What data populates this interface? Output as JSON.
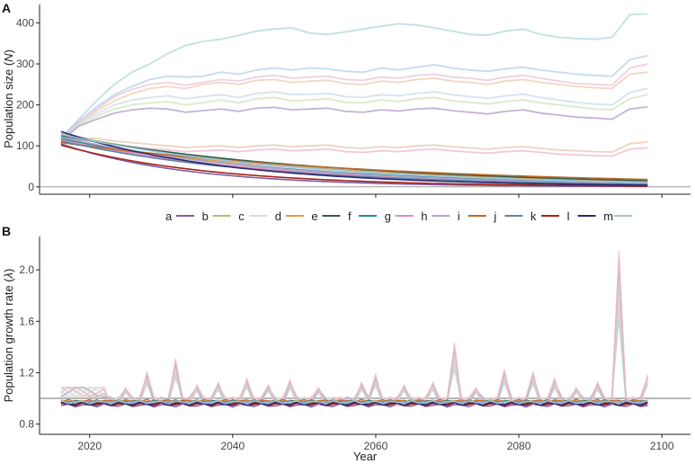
{
  "chart_data": [
    {
      "panel": "A",
      "type": "line",
      "ylabel_main": "Population size (",
      "ylabel_symbol": "N",
      "ylabel_close": ")",
      "xlabel": "",
      "xlim": [
        2013,
        2104
      ],
      "ylim": [
        -18,
        445
      ],
      "x_ticks": [
        2020,
        2040,
        2060,
        2080,
        2100
      ],
      "y_ticks": [
        0,
        100,
        200,
        300,
        400
      ],
      "y_tick_labels": [
        "0",
        "100",
        "200",
        "300",
        "400"
      ],
      "reference_line": 0,
      "start_year": 2016,
      "end_year": 2098,
      "series": [
        {
          "name": "a",
          "color": "#7b5ea7",
          "start": 105,
          "end": 1
        },
        {
          "name": "b",
          "color": "#a6c36f",
          "start": 130,
          "end": 12
        },
        {
          "name": "c",
          "color": "#d9dbe8",
          "start": 120,
          "end": 10
        },
        {
          "name": "d",
          "color": "#e0a044",
          "start": 110,
          "end": 14
        },
        {
          "name": "e",
          "color": "#2c5f4e",
          "start": 125,
          "end": 15
        },
        {
          "name": "f",
          "color": "#1f8f9e",
          "start": 118,
          "end": 9
        },
        {
          "name": "g",
          "color": "#e68ab8",
          "start": 115,
          "end": 7
        },
        {
          "name": "h",
          "color": "#b7a3cc",
          "start": 122,
          "end": 8
        },
        {
          "name": "i",
          "color": "#b86a2e",
          "start": 108,
          "end": 18
        },
        {
          "name": "j",
          "color": "#5b85a8",
          "start": 112,
          "end": 6
        },
        {
          "name": "k",
          "color": "#a62219",
          "start": 102,
          "end": 2
        },
        {
          "name": "l",
          "color": "#2b2a6e",
          "start": 135,
          "end": 4
        },
        {
          "name": "m",
          "color": "#9cc6e0",
          "start": 128,
          "end": 11
        }
      ],
      "faint_trajectories": [
        {
          "color": "#a9d8d6",
          "values": [
            120,
            165,
            210,
            250,
            280,
            300,
            325,
            345,
            355,
            360,
            370,
            380,
            385,
            388,
            375,
            372,
            378,
            385,
            392,
            398,
            395,
            388,
            380,
            372,
            370,
            380,
            385,
            372,
            365,
            362,
            360,
            365,
            420,
            422
          ]
        },
        {
          "color": "#b3cdea",
          "values": [
            118,
            160,
            195,
            225,
            245,
            262,
            270,
            268,
            270,
            280,
            275,
            285,
            290,
            285,
            290,
            288,
            282,
            280,
            290,
            285,
            292,
            298,
            290,
            285,
            282,
            288,
            292,
            285,
            280,
            275,
            272,
            270,
            310,
            320
          ]
        },
        {
          "color": "#f0c8a8",
          "values": [
            115,
            155,
            185,
            210,
            228,
            240,
            245,
            240,
            250,
            255,
            250,
            260,
            262,
            255,
            258,
            260,
            252,
            250,
            258,
            255,
            262,
            265,
            258,
            255,
            250,
            258,
            262,
            255,
            250,
            245,
            242,
            240,
            275,
            280
          ]
        },
        {
          "color": "#e8c0d8",
          "values": [
            117,
            160,
            190,
            220,
            238,
            250,
            255,
            248,
            255,
            262,
            258,
            268,
            272,
            265,
            268,
            270,
            262,
            260,
            268,
            265,
            272,
            275,
            268,
            265,
            260,
            268,
            272,
            265,
            258,
            252,
            250,
            248,
            290,
            300
          ]
        },
        {
          "color": "#cfe3b5",
          "values": [
            114,
            150,
            172,
            190,
            200,
            205,
            208,
            200,
            205,
            212,
            205,
            215,
            218,
            210,
            212,
            215,
            206,
            205,
            212,
            208,
            215,
            218,
            210,
            206,
            202,
            208,
            212,
            205,
            200,
            195,
            190,
            188,
            215,
            225
          ]
        },
        {
          "color": "#c7d9ec",
          "values": [
            116,
            155,
            178,
            200,
            212,
            218,
            222,
            215,
            220,
            225,
            218,
            228,
            232,
            225,
            226,
            228,
            220,
            218,
            225,
            222,
            228,
            232,
            225,
            220,
            216,
            222,
            226,
            218,
            212,
            206,
            202,
            200,
            230,
            240
          ]
        },
        {
          "color": "#b09ac8",
          "values": [
            112,
            148,
            165,
            180,
            188,
            192,
            190,
            182,
            186,
            190,
            184,
            192,
            194,
            188,
            190,
            192,
            184,
            182,
            188,
            185,
            190,
            192,
            186,
            182,
            178,
            184,
            188,
            180,
            175,
            170,
            168,
            165,
            190,
            195
          ]
        },
        {
          "color": "#e6c6ae",
          "values": [
            110,
            120,
            118,
            112,
            108,
            104,
            100,
            96,
            98,
            100,
            96,
            100,
            102,
            98,
            100,
            102,
            96,
            94,
            98,
            96,
            100,
            102,
            98,
            95,
            92,
            96,
            98,
            94,
            90,
            88,
            86,
            85,
            105,
            110
          ]
        },
        {
          "color": "#edb6cc",
          "values": [
            108,
            115,
            112,
            104,
            98,
            94,
            90,
            86,
            88,
            90,
            86,
            90,
            92,
            88,
            90,
            92,
            86,
            84,
            88,
            86,
            90,
            92,
            88,
            85,
            82,
            86,
            88,
            84,
            80,
            78,
            76,
            75,
            92,
            95
          ]
        }
      ]
    },
    {
      "panel": "B",
      "type": "line",
      "ylabel_main": "Population growth rate (",
      "ylabel_symbol": "λ",
      "ylabel_close": ")",
      "xlabel": "Year",
      "xlim": [
        2013,
        2104
      ],
      "ylim": [
        0.72,
        2.26
      ],
      "x_ticks": [
        2020,
        2040,
        2060,
        2080,
        2100
      ],
      "x_tick_labels": [
        "2020",
        "2040",
        "2060",
        "2080",
        "2100"
      ],
      "y_ticks": [
        0.8,
        1.2,
        1.6,
        2.0
      ],
      "y_tick_labels": [
        "0.8",
        "1.2",
        "1.6",
        "2.0"
      ],
      "reference_line": 1.0,
      "spike_years": [
        2022,
        2025,
        2028,
        2032,
        2035,
        2038,
        2042,
        2045,
        2048,
        2052,
        2058,
        2060,
        2064,
        2068,
        2071,
        2074,
        2078,
        2082,
        2085,
        2088,
        2091,
        2094,
        2098
      ],
      "spike_heights": [
        0.12,
        0.08,
        0.2,
        0.3,
        0.1,
        0.12,
        0.15,
        0.1,
        0.14,
        0.08,
        0.12,
        0.18,
        0.1,
        0.12,
        0.42,
        0.08,
        0.22,
        0.2,
        0.15,
        0.08,
        0.12,
        1.12,
        0.18
      ]
    }
  ],
  "legend": {
    "entries": [
      {
        "label": "a",
        "color": "#7b5ea7"
      },
      {
        "label": "b",
        "color": "#a6c36f"
      },
      {
        "label": "c",
        "color": "#d9dbe8"
      },
      {
        "label": "d",
        "color": "#e0a044"
      },
      {
        "label": "e",
        "color": "#2c5f4e"
      },
      {
        "label": "f",
        "color": "#1f8f9e"
      },
      {
        "label": "g",
        "color": "#e68ab8"
      },
      {
        "label": "h",
        "color": "#b7a3cc"
      },
      {
        "label": "i",
        "color": "#b86a2e"
      },
      {
        "label": "j",
        "color": "#5b85a8"
      },
      {
        "label": "k",
        "color": "#a62219"
      },
      {
        "label": "l",
        "color": "#2b2a6e"
      },
      {
        "label": "m",
        "color": "#9cc6e0"
      }
    ]
  }
}
